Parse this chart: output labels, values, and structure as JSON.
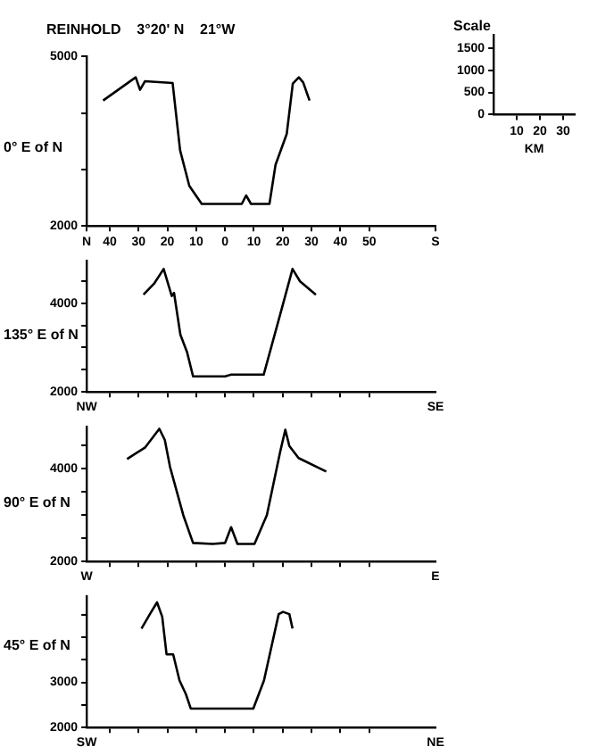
{
  "chart_data": [
    {
      "type": "line",
      "title": "REINHOLD    3°20' N    21°W",
      "ylabel": "0° E of N",
      "marker": "none",
      "line_style": "solid",
      "xlim": [
        -48,
        73
      ],
      "xticks": [
        {
          "value": -48,
          "label": "N"
        },
        {
          "value": -40,
          "label": "40"
        },
        {
          "value": -30,
          "label": "30"
        },
        {
          "value": -20,
          "label": "20"
        },
        {
          "value": -10,
          "label": "10"
        },
        0,
        10,
        20,
        30,
        40,
        50,
        {
          "value": 73,
          "label": "S"
        }
      ],
      "ylim": [
        2000,
        5000
      ],
      "yticks": [
        2000,
        {
          "value": 3000,
          "label": null
        },
        {
          "value": 4000,
          "label": null
        },
        5000
      ],
      "series": [
        {
          "color": "#000000",
          "x": [
            -42.3,
            -31,
            -29.5,
            -27.8,
            -18.2,
            -15.6,
            -12.4,
            -8.1,
            5.8,
            7.3,
            9,
            15.4,
            17.5,
            21.4,
            23.5,
            25.6,
            27.1,
            29.3
          ],
          "values": [
            4220,
            4630,
            4410,
            4560,
            4530,
            3340,
            2710,
            2390,
            2390,
            2540,
            2390,
            2390,
            3080,
            3630,
            4520,
            4630,
            4540,
            4220
          ]
        }
      ]
    },
    {
      "type": "line",
      "title": "Scale",
      "xlabel": "KM",
      "xlim": [
        0,
        35
      ],
      "xticks": [
        10,
        20,
        30
      ],
      "ylim": [
        0,
        1800
      ],
      "yticks": [
        0,
        500,
        1000,
        1500
      ]
    },
    {
      "type": "line",
      "ylabel": "135° E of N",
      "marker": "none",
      "line_style": "solid",
      "tick_labels": "y",
      "annotations": [
        "NW",
        "SE"
      ],
      "xlim": [
        -48,
        73
      ],
      "xticks": [
        -40,
        -30,
        -20,
        -10,
        0,
        10,
        20,
        30,
        40,
        50
      ],
      "ylim": [
        2000,
        4950
      ],
      "yticks": [
        2000,
        {
          "value": 2500,
          "label": null
        },
        {
          "value": 3000,
          "label": null
        },
        {
          "value": 3500,
          "label": null
        },
        4000,
        {
          "value": 4500,
          "label": null
        }
      ],
      "series": [
        {
          "color": "#000000",
          "x": [
            -28.3,
            -24.5,
            -21.3,
            -18.5,
            -17.7,
            -15.5,
            -13.2,
            -11.1,
            0,
            2.1,
            13.4,
            19.1,
            23.4,
            26,
            31.5
          ],
          "values": [
            4190,
            4450,
            4770,
            4160,
            4230,
            3290,
            2900,
            2350,
            2350,
            2390,
            2390,
            3740,
            4770,
            4490,
            4190
          ]
        }
      ]
    },
    {
      "type": "line",
      "ylabel": "90° E of N",
      "marker": "none",
      "line_style": "solid",
      "tick_labels": "y",
      "annotations": [
        "W",
        "E"
      ],
      "xlim": [
        -48,
        73
      ],
      "xticks": [
        -40,
        -30,
        -20,
        -10,
        0,
        10,
        20,
        30,
        40,
        50
      ],
      "ylim": [
        2000,
        4900
      ],
      "yticks": [
        2000,
        {
          "value": 2500,
          "label": null
        },
        {
          "value": 3000,
          "label": null
        },
        {
          "value": 3500,
          "label": null
        },
        4000,
        {
          "value": 4500,
          "label": null
        }
      ],
      "series": [
        {
          "color": "#000000",
          "x": [
            -34,
            -27.7,
            -22.8,
            -20.9,
            -19.1,
            -14.5,
            -11.1,
            -4.3,
            0,
            2.1,
            4.3,
            10.2,
            14.5,
            19.1,
            20.9,
            22.3,
            25.5,
            35.1
          ],
          "values": [
            4210,
            4460,
            4860,
            4620,
            4040,
            3000,
            2400,
            2380,
            2400,
            2740,
            2380,
            2380,
            3000,
            4360,
            4840,
            4490,
            4230,
            3940
          ]
        }
      ]
    },
    {
      "type": "line",
      "ylabel": "45° E of N",
      "marker": "none",
      "line_style": "solid",
      "tick_labels": "y",
      "annotations": [
        "SW",
        "NE"
      ],
      "xlim": [
        -48,
        73
      ],
      "xticks": [
        -40,
        -30,
        -20,
        -10,
        0,
        10,
        20,
        30,
        40,
        50
      ],
      "ylim": [
        2000,
        4900
      ],
      "yticks": [
        2000,
        {
          "value": 2500,
          "label": null
        },
        3000,
        {
          "value": 3500,
          "label": null
        },
        {
          "value": 4000,
          "label": null
        },
        {
          "value": 4500,
          "label": null
        }
      ],
      "series": [
        {
          "color": "#000000",
          "x": [
            -29,
            -25.8,
            -23.6,
            -21.8,
            -20.3,
            -18,
            -15.8,
            -13.6,
            -11.9,
            9.8,
            13.5,
            18.6,
            20.1,
            22.3,
            23.4
          ],
          "values": [
            4190,
            4540,
            4770,
            4450,
            3620,
            3620,
            3040,
            2740,
            2420,
            2420,
            3040,
            4510,
            4560,
            4510,
            4190
          ]
        }
      ]
    }
  ]
}
